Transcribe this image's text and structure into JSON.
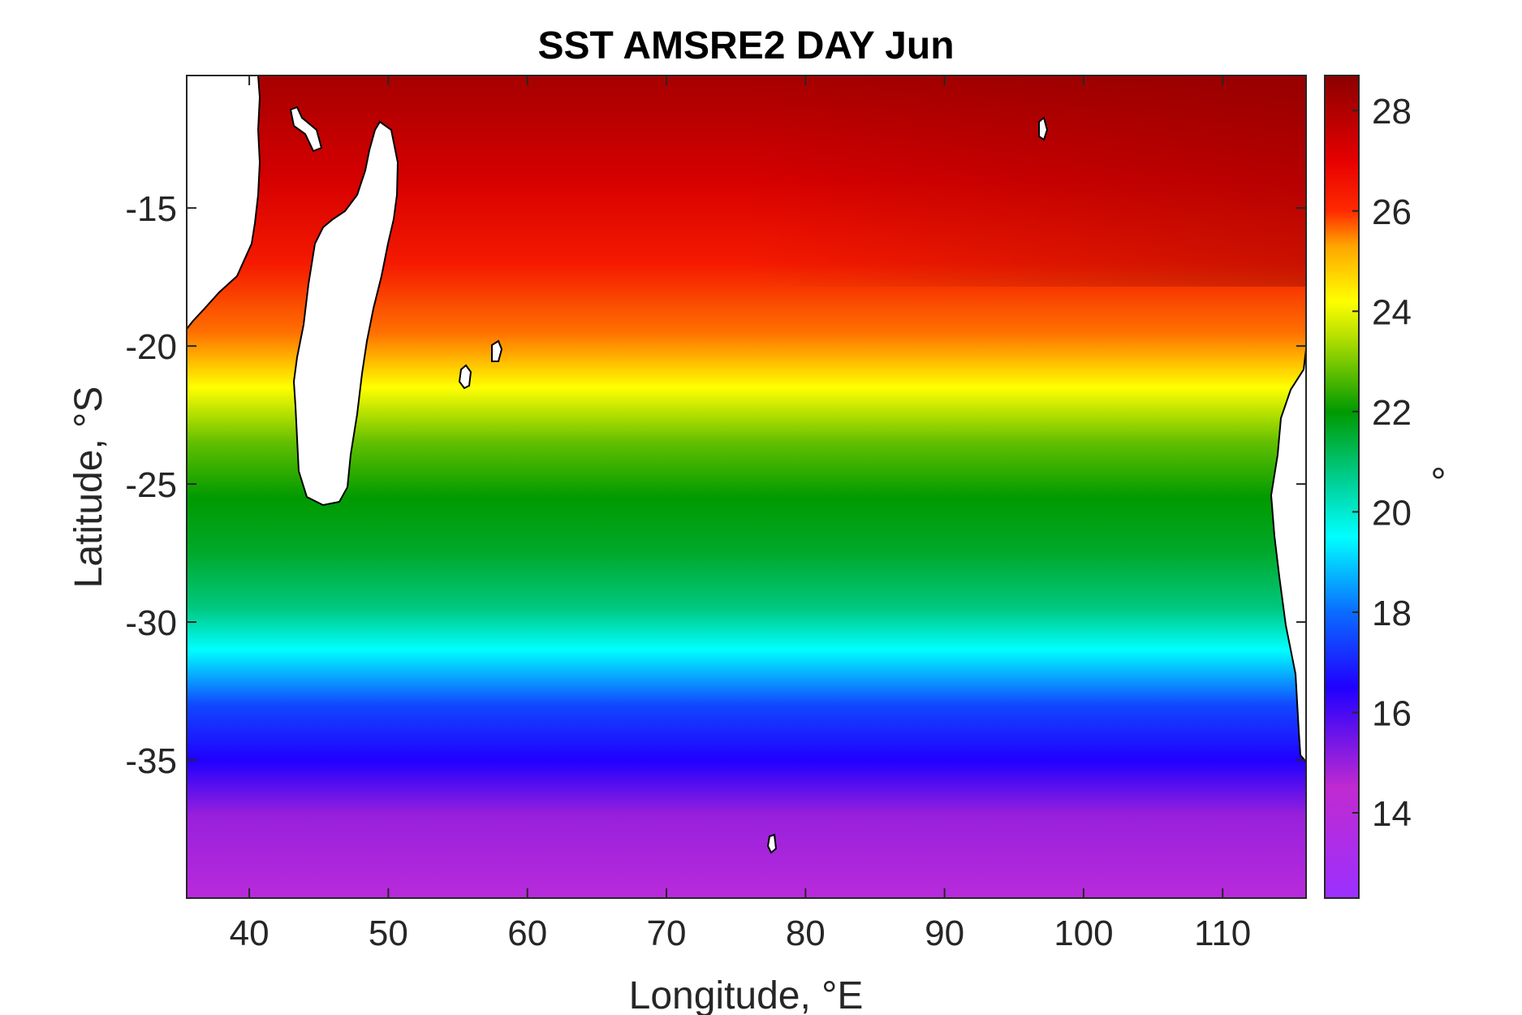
{
  "chart_data": {
    "type": "heatmap",
    "title": "SST AMSRE2 DAY Jun",
    "xlabel": "Longitude, °E",
    "ylabel": "Latitude, °S",
    "colorbar_label": "°",
    "xlim": [
      35.5,
      116
    ],
    "ylim": [
      -40,
      -10.2
    ],
    "xticks": [
      40,
      50,
      60,
      70,
      80,
      90,
      100,
      110
    ],
    "yticks": [
      -15,
      -20,
      -25,
      -30,
      -35
    ],
    "clim": [
      12.3,
      28.7
    ],
    "colorbar_ticks": [
      28,
      26,
      24,
      22,
      20,
      18,
      16,
      14
    ],
    "colormap_stops": [
      {
        "value": 12.3,
        "color": "#9b30ff"
      },
      {
        "value": 14.5,
        "color": "#c02ad0"
      },
      {
        "value": 16.5,
        "color": "#2000ff"
      },
      {
        "value": 18.0,
        "color": "#0a6cff"
      },
      {
        "value": 19.5,
        "color": "#00ffff"
      },
      {
        "value": 20.5,
        "color": "#00d4a0"
      },
      {
        "value": 22.0,
        "color": "#009a00"
      },
      {
        "value": 23.5,
        "color": "#b7e000"
      },
      {
        "value": 24.2,
        "color": "#ffff00"
      },
      {
        "value": 25.3,
        "color": "#ffa500"
      },
      {
        "value": 26.0,
        "color": "#ff2a00"
      },
      {
        "value": 27.0,
        "color": "#e60000"
      },
      {
        "value": 28.7,
        "color": "#8b0000"
      }
    ],
    "sst_by_latitude_center": [
      {
        "lat": -10.2,
        "sst": 28.2
      },
      {
        "lat": -14.0,
        "sst": 27.3
      },
      {
        "lat": -17.0,
        "sst": 26.4
      },
      {
        "lat": -19.5,
        "sst": 25.6
      },
      {
        "lat": -21.5,
        "sst": 24.2
      },
      {
        "lat": -23.5,
        "sst": 22.8
      },
      {
        "lat": -25.5,
        "sst": 22.0
      },
      {
        "lat": -27.5,
        "sst": 21.6
      },
      {
        "lat": -29.5,
        "sst": 20.8
      },
      {
        "lat": -31.0,
        "sst": 19.5
      },
      {
        "lat": -33.0,
        "sst": 17.5
      },
      {
        "lat": -35.0,
        "sst": 16.5
      },
      {
        "lat": -37.0,
        "sst": 15.0
      },
      {
        "lat": -40.0,
        "sst": 14.0
      }
    ],
    "land_color": "#ffffff",
    "coastline_color": "#000000"
  }
}
